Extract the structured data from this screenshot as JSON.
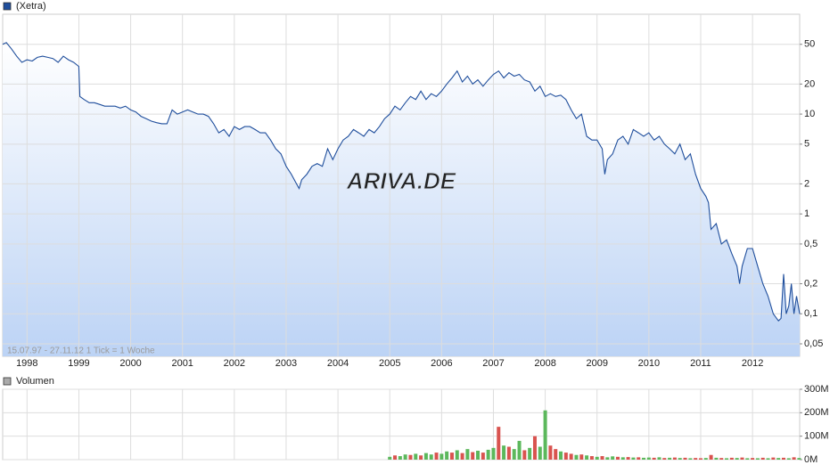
{
  "chart_data": [
    {
      "type": "line",
      "legend_name": "(Xetra)",
      "color": "#1f4e9c",
      "log_scale": true,
      "grid": true,
      "footnote": "15.07.97 - 27.11.12   1 Tick = 1 Woche",
      "watermark": "ARIVA.DE",
      "xlim": [
        1997.53,
        2012.91
      ],
      "ylim": [
        0.0375,
        100
      ],
      "xticks": [
        1998,
        1999,
        2000,
        2001,
        2002,
        2003,
        2004,
        2005,
        2006,
        2007,
        2008,
        2009,
        2010,
        2011,
        2012
      ],
      "yticks": [
        {
          "value": 0.05,
          "label": "0,05"
        },
        {
          "value": 0.1,
          "label": "0,1"
        },
        {
          "value": 0.2,
          "label": "0,2"
        },
        {
          "value": 0.5,
          "label": "0,5"
        },
        1,
        2,
        5,
        10,
        20,
        50
      ],
      "x": [
        1997.53,
        1997.6,
        1997.7,
        1997.8,
        1997.9,
        1998.0,
        1998.1,
        1998.2,
        1998.3,
        1998.4,
        1998.5,
        1998.6,
        1998.7,
        1998.8,
        1998.9,
        1999.0,
        1999.02,
        1999.1,
        1999.2,
        1999.3,
        1999.4,
        1999.5,
        1999.6,
        1999.7,
        1999.8,
        1999.9,
        2000.0,
        2000.1,
        2000.2,
        2000.3,
        2000.4,
        2000.5,
        2000.6,
        2000.7,
        2000.8,
        2000.9,
        2001.0,
        2001.1,
        2001.2,
        2001.3,
        2001.4,
        2001.5,
        2001.6,
        2001.7,
        2001.8,
        2001.9,
        2002.0,
        2002.1,
        2002.2,
        2002.3,
        2002.4,
        2002.5,
        2002.6,
        2002.7,
        2002.8,
        2002.9,
        2003.0,
        2003.1,
        2003.2,
        2003.25,
        2003.3,
        2003.4,
        2003.5,
        2003.6,
        2003.7,
        2003.8,
        2003.9,
        2004.0,
        2004.1,
        2004.2,
        2004.3,
        2004.4,
        2004.5,
        2004.6,
        2004.7,
        2004.8,
        2004.9,
        2005.0,
        2005.1,
        2005.2,
        2005.3,
        2005.4,
        2005.5,
        2005.6,
        2005.7,
        2005.8,
        2005.9,
        2006.0,
        2006.1,
        2006.2,
        2006.3,
        2006.4,
        2006.5,
        2006.6,
        2006.7,
        2006.8,
        2006.9,
        2007.0,
        2007.1,
        2007.2,
        2007.3,
        2007.4,
        2007.5,
        2007.6,
        2007.7,
        2007.8,
        2007.9,
        2008.0,
        2008.1,
        2008.2,
        2008.3,
        2008.4,
        2008.5,
        2008.6,
        2008.7,
        2008.8,
        2008.9,
        2009.0,
        2009.1,
        2009.15,
        2009.2,
        2009.3,
        2009.4,
        2009.5,
        2009.6,
        2009.7,
        2009.8,
        2009.9,
        2010.0,
        2010.1,
        2010.2,
        2010.3,
        2010.4,
        2010.5,
        2010.6,
        2010.7,
        2010.8,
        2010.9,
        2011.0,
        2011.1,
        2011.15,
        2011.2,
        2011.3,
        2011.4,
        2011.5,
        2011.6,
        2011.7,
        2011.75,
        2011.8,
        2011.9,
        2012.0,
        2012.1,
        2012.2,
        2012.3,
        2012.4,
        2012.5,
        2012.55,
        2012.6,
        2012.65,
        2012.7,
        2012.75,
        2012.8,
        2012.85,
        2012.91
      ],
      "values": [
        50,
        52,
        45,
        38,
        33,
        35,
        34,
        37,
        38,
        37,
        36,
        33,
        38,
        35,
        33,
        30,
        15,
        14,
        13,
        13,
        12.5,
        12,
        12,
        12,
        11.5,
        12,
        11,
        10.5,
        9.5,
        9,
        8.5,
        8.2,
        8,
        8,
        11,
        10,
        10.5,
        11,
        10.5,
        10,
        10,
        9.5,
        8,
        6.5,
        7,
        6,
        7.5,
        7,
        7.5,
        7.5,
        7,
        6.5,
        6.5,
        5.5,
        4.5,
        4,
        3,
        2.5,
        2.0,
        1.8,
        2.2,
        2.5,
        3,
        3.2,
        3.0,
        4.5,
        3.5,
        4.5,
        5.5,
        6,
        7,
        6.5,
        6,
        7,
        6.5,
        7.5,
        9,
        10,
        12,
        11,
        13,
        15,
        14,
        17,
        14,
        16,
        15,
        17,
        20,
        23,
        27,
        21,
        24,
        20,
        22,
        19,
        22,
        25,
        27,
        23,
        26,
        24,
        25,
        22,
        21,
        17,
        19,
        15,
        16,
        15,
        15.5,
        14,
        11,
        9,
        10,
        6,
        5.5,
        5.5,
        4.5,
        2.5,
        3.5,
        4,
        5.5,
        6,
        5,
        7,
        6.5,
        6,
        6.5,
        5.5,
        6,
        5,
        4.5,
        4,
        5,
        3.5,
        4,
        2.5,
        1.8,
        1.5,
        1.3,
        0.7,
        0.8,
        0.5,
        0.55,
        0.4,
        0.3,
        0.2,
        0.3,
        0.45,
        0.45,
        0.3,
        0.2,
        0.15,
        0.1,
        0.085,
        0.09,
        0.25,
        0.1,
        0.12,
        0.2,
        0.1,
        0.15,
        0.1
      ]
    },
    {
      "type": "volume",
      "legend_name": "Volumen",
      "color": "#aaaaaa",
      "grid": true,
      "xlim": [
        1997.53,
        2012.91
      ],
      "ylim": [
        0,
        300
      ],
      "xticks": [
        1998,
        1999,
        2000,
        2001,
        2002,
        2003,
        2004,
        2005,
        2006,
        2007,
        2008,
        2009,
        2010,
        2011,
        2012
      ],
      "yticks": [
        {
          "value": 0,
          "label": "0M"
        },
        {
          "value": 100,
          "label": "100M"
        },
        {
          "value": 200,
          "label": "200M"
        },
        {
          "value": 300,
          "label": "300M"
        }
      ],
      "x": [
        2005.0,
        2005.1,
        2005.2,
        2005.3,
        2005.4,
        2005.5,
        2005.6,
        2005.7,
        2005.8,
        2005.9,
        2006.0,
        2006.1,
        2006.2,
        2006.3,
        2006.4,
        2006.5,
        2006.6,
        2006.7,
        2006.8,
        2006.9,
        2007.0,
        2007.1,
        2007.2,
        2007.3,
        2007.4,
        2007.5,
        2007.6,
        2007.7,
        2007.8,
        2007.9,
        2008.0,
        2008.1,
        2008.2,
        2008.3,
        2008.4,
        2008.5,
        2008.6,
        2008.7,
        2008.8,
        2008.9,
        2009.0,
        2009.1,
        2009.2,
        2009.3,
        2009.4,
        2009.5,
        2009.6,
        2009.7,
        2009.8,
        2009.9,
        2010.0,
        2010.1,
        2010.2,
        2010.3,
        2010.4,
        2010.5,
        2010.6,
        2010.7,
        2010.8,
        2010.9,
        2011.0,
        2011.1,
        2011.2,
        2011.3,
        2011.4,
        2011.5,
        2011.6,
        2011.7,
        2011.8,
        2011.9,
        2012.0,
        2012.1,
        2012.2,
        2012.3,
        2012.4,
        2012.5,
        2012.6,
        2012.7,
        2012.8,
        2012.9
      ],
      "values": [
        12,
        18,
        15,
        22,
        20,
        25,
        18,
        28,
        22,
        30,
        25,
        35,
        30,
        40,
        28,
        45,
        32,
        38,
        30,
        42,
        50,
        140,
        60,
        55,
        45,
        80,
        40,
        50,
        100,
        55,
        210,
        60,
        45,
        35,
        30,
        25,
        20,
        22,
        18,
        15,
        12,
        15,
        10,
        14,
        12,
        10,
        11,
        9,
        10,
        8,
        9,
        8,
        10,
        7,
        8,
        9,
        7,
        8,
        6,
        7,
        6,
        7,
        20,
        8,
        7,
        6,
        8,
        7,
        9,
        6,
        7,
        6,
        8,
        6,
        9,
        7,
        8,
        6,
        10,
        7
      ],
      "colors": [
        "#5cb85c",
        "#d9534f",
        "#5cb85c",
        "#5cb85c",
        "#d9534f",
        "#5cb85c",
        "#d9534f",
        "#5cb85c",
        "#5cb85c",
        "#d9534f",
        "#5cb85c",
        "#5cb85c",
        "#d9534f",
        "#5cb85c",
        "#d9534f",
        "#5cb85c",
        "#d9534f",
        "#5cb85c",
        "#d9534f",
        "#5cb85c",
        "#5cb85c",
        "#d9534f",
        "#5cb85c",
        "#d9534f",
        "#5cb85c",
        "#5cb85c",
        "#d9534f",
        "#5cb85c",
        "#d9534f",
        "#5cb85c",
        "#5cb85c",
        "#d9534f",
        "#d9534f",
        "#5cb85c",
        "#d9534f",
        "#d9534f",
        "#5cb85c",
        "#d9534f",
        "#5cb85c",
        "#d9534f",
        "#5cb85c",
        "#d9534f",
        "#5cb85c",
        "#5cb85c",
        "#d9534f",
        "#5cb85c",
        "#d9534f",
        "#5cb85c",
        "#d9534f",
        "#5cb85c",
        "#5cb85c",
        "#d9534f",
        "#5cb85c",
        "#d9534f",
        "#5cb85c",
        "#d9534f",
        "#5cb85c",
        "#d9534f",
        "#5cb85c",
        "#d9534f",
        "#d9534f",
        "#5cb85c",
        "#d9534f",
        "#5cb85c",
        "#d9534f",
        "#5cb85c",
        "#d9534f",
        "#5cb85c",
        "#d9534f",
        "#5cb85c",
        "#d9534f",
        "#5cb85c",
        "#d9534f",
        "#5cb85c",
        "#d9534f",
        "#5cb85c",
        "#d9534f",
        "#5cb85c",
        "#d9534f",
        "#5cb85c"
      ]
    }
  ]
}
